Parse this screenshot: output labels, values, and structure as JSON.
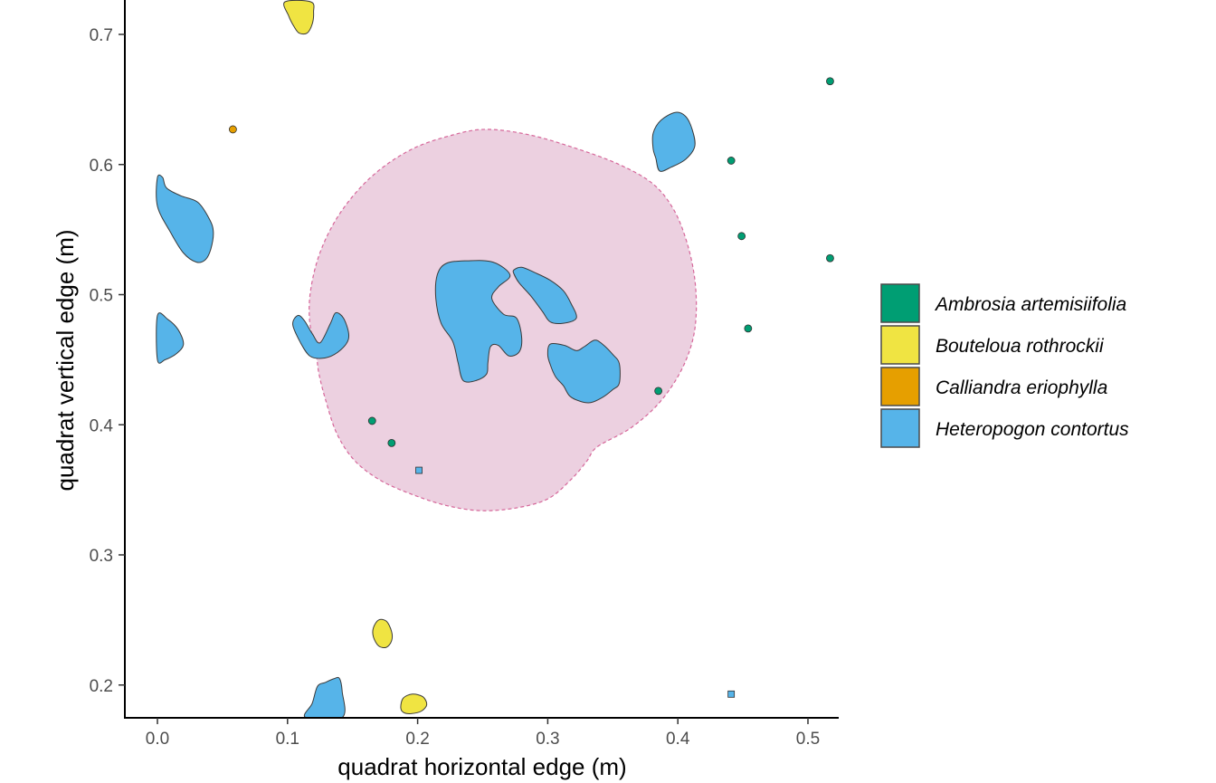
{
  "chart_data": {
    "type": "scatter",
    "title": "",
    "xlabel": "quadrat horizontal edge (m)",
    "ylabel": "quadrat vertical edge (m)",
    "xlim": [
      -0.025,
      0.525
    ],
    "ylim": [
      0.175,
      0.725
    ],
    "xticks": [
      "0.0",
      "0.1",
      "0.2",
      "0.3",
      "0.4",
      "0.5"
    ],
    "yticks": [
      "0.2",
      "0.3",
      "0.4",
      "0.5",
      "0.6",
      "0.7"
    ],
    "grid": false,
    "legend_position": "right",
    "species": [
      {
        "name": "Ambrosia artemisiifolia",
        "color": "#009E73"
      },
      {
        "name": "Bouteloua rothrockii",
        "color": "#F0E442"
      },
      {
        "name": "Calliandra eriophylla",
        "color": "#E69F00"
      },
      {
        "name": "Heteropogon contortus",
        "color": "#56B4E9"
      }
    ],
    "points": [
      {
        "species": "Ambrosia artemisiifolia",
        "x": 0.517,
        "y": 0.664
      },
      {
        "species": "Ambrosia artemisiifolia",
        "x": 0.441,
        "y": 0.603
      },
      {
        "species": "Ambrosia artemisiifolia",
        "x": 0.449,
        "y": 0.545
      },
      {
        "species": "Ambrosia artemisiifolia",
        "x": 0.517,
        "y": 0.528
      },
      {
        "species": "Ambrosia artemisiifolia",
        "x": 0.454,
        "y": 0.474
      },
      {
        "species": "Ambrosia artemisiifolia",
        "x": 0.385,
        "y": 0.426
      },
      {
        "species": "Ambrosia artemisiifolia",
        "x": 0.165,
        "y": 0.403
      },
      {
        "species": "Ambrosia artemisiifolia",
        "x": 0.18,
        "y": 0.386
      },
      {
        "species": "Calliandra eriophylla",
        "x": 0.058,
        "y": 0.627
      }
    ],
    "square_points": [
      {
        "species": "Heteropogon contortus",
        "x": 0.201,
        "y": 0.365
      },
      {
        "species": "Heteropogon contortus",
        "x": 0.441,
        "y": 0.193
      }
    ],
    "highlight_region": {
      "fill": "#ecd0e0",
      "stroke": "#d6679a",
      "style": "dashed",
      "outline": [
        [
          0.122,
          0.455
        ],
        [
          0.117,
          0.48
        ],
        [
          0.118,
          0.505
        ],
        [
          0.126,
          0.535
        ],
        [
          0.142,
          0.565
        ],
        [
          0.166,
          0.592
        ],
        [
          0.196,
          0.612
        ],
        [
          0.228,
          0.623
        ],
        [
          0.253,
          0.627
        ],
        [
          0.285,
          0.623
        ],
        [
          0.32,
          0.613
        ],
        [
          0.355,
          0.6
        ],
        [
          0.381,
          0.585
        ],
        [
          0.397,
          0.565
        ],
        [
          0.407,
          0.54
        ],
        [
          0.413,
          0.512
        ],
        [
          0.414,
          0.483
        ],
        [
          0.41,
          0.46
        ],
        [
          0.4,
          0.437
        ],
        [
          0.384,
          0.415
        ],
        [
          0.363,
          0.397
        ],
        [
          0.338,
          0.383
        ],
        [
          0.33,
          0.372
        ],
        [
          0.318,
          0.358
        ],
        [
          0.3,
          0.343
        ],
        [
          0.275,
          0.336
        ],
        [
          0.248,
          0.334
        ],
        [
          0.222,
          0.338
        ],
        [
          0.197,
          0.346
        ],
        [
          0.172,
          0.357
        ],
        [
          0.152,
          0.372
        ],
        [
          0.138,
          0.393
        ],
        [
          0.129,
          0.42
        ],
        [
          0.124,
          0.44
        ]
      ]
    },
    "patches": [
      {
        "species": "Bouteloua rothrockii",
        "outline": [
          [
            0.098,
            0.725
          ],
          [
            0.101,
            0.714
          ],
          [
            0.105,
            0.706
          ],
          [
            0.109,
            0.701
          ],
          [
            0.115,
            0.701
          ],
          [
            0.119,
            0.708
          ],
          [
            0.12,
            0.717
          ],
          [
            0.118,
            0.725
          ]
        ]
      },
      {
        "species": "Bouteloua rothrockii",
        "outline": [
          [
            0.166,
            0.244
          ],
          [
            0.17,
            0.25
          ],
          [
            0.176,
            0.249
          ],
          [
            0.18,
            0.241
          ],
          [
            0.18,
            0.234
          ],
          [
            0.176,
            0.229
          ],
          [
            0.17,
            0.23
          ],
          [
            0.166,
            0.237
          ]
        ]
      },
      {
        "species": "Bouteloua rothrockii",
        "outline": [
          [
            0.187,
            0.183
          ],
          [
            0.189,
            0.19
          ],
          [
            0.196,
            0.193
          ],
          [
            0.204,
            0.191
          ],
          [
            0.207,
            0.185
          ],
          [
            0.203,
            0.18
          ],
          [
            0.195,
            0.178
          ],
          [
            0.189,
            0.179
          ]
        ]
      },
      {
        "species": "Heteropogon contortus",
        "outline": [
          [
            0.0,
            0.59
          ],
          [
            0.004,
            0.59
          ],
          [
            0.007,
            0.582
          ],
          [
            0.018,
            0.576
          ],
          [
            0.031,
            0.571
          ],
          [
            0.04,
            0.558
          ],
          [
            0.043,
            0.548
          ],
          [
            0.041,
            0.535
          ],
          [
            0.037,
            0.527
          ],
          [
            0.03,
            0.525
          ],
          [
            0.02,
            0.532
          ],
          [
            0.01,
            0.548
          ],
          [
            0.0,
            0.568
          ]
        ]
      },
      {
        "species": "Heteropogon contortus",
        "outline": [
          [
            0.0,
            0.484
          ],
          [
            0.008,
            0.481
          ],
          [
            0.016,
            0.473
          ],
          [
            0.02,
            0.462
          ],
          [
            0.015,
            0.455
          ],
          [
            0.006,
            0.45
          ],
          [
            0.0,
            0.45
          ]
        ]
      },
      {
        "species": "Heteropogon contortus",
        "outline": [
          [
            0.104,
            0.477
          ],
          [
            0.108,
            0.484
          ],
          [
            0.113,
            0.48
          ],
          [
            0.119,
            0.47
          ],
          [
            0.125,
            0.463
          ],
          [
            0.133,
            0.478
          ],
          [
            0.137,
            0.486
          ],
          [
            0.143,
            0.482
          ],
          [
            0.147,
            0.47
          ],
          [
            0.145,
            0.462
          ],
          [
            0.136,
            0.454
          ],
          [
            0.126,
            0.451
          ],
          [
            0.117,
            0.453
          ],
          [
            0.11,
            0.463
          ]
        ]
      },
      {
        "species": "Heteropogon contortus",
        "outline": [
          [
            0.215,
            0.515
          ],
          [
            0.222,
            0.524
          ],
          [
            0.238,
            0.526
          ],
          [
            0.258,
            0.525
          ],
          [
            0.271,
            0.515
          ],
          [
            0.262,
            0.506
          ],
          [
            0.257,
            0.497
          ],
          [
            0.266,
            0.485
          ],
          [
            0.276,
            0.482
          ],
          [
            0.28,
            0.467
          ],
          [
            0.278,
            0.456
          ],
          [
            0.27,
            0.453
          ],
          [
            0.262,
            0.461
          ],
          [
            0.256,
            0.46
          ],
          [
            0.254,
            0.448
          ],
          [
            0.253,
            0.439
          ],
          [
            0.245,
            0.434
          ],
          [
            0.235,
            0.434
          ],
          [
            0.231,
            0.448
          ],
          [
            0.227,
            0.464
          ],
          [
            0.218,
            0.478
          ],
          [
            0.214,
            0.497
          ]
        ]
      },
      {
        "species": "Heteropogon contortus",
        "outline": [
          [
            0.274,
            0.519
          ],
          [
            0.28,
            0.521
          ],
          [
            0.29,
            0.517
          ],
          [
            0.302,
            0.511
          ],
          [
            0.312,
            0.503
          ],
          [
            0.318,
            0.493
          ],
          [
            0.322,
            0.482
          ],
          [
            0.312,
            0.478
          ],
          [
            0.302,
            0.479
          ],
          [
            0.296,
            0.487
          ],
          [
            0.287,
            0.499
          ],
          [
            0.278,
            0.509
          ],
          [
            0.274,
            0.516
          ]
        ]
      },
      {
        "species": "Heteropogon contortus",
        "outline": [
          [
            0.3,
            0.454
          ],
          [
            0.302,
            0.462
          ],
          [
            0.313,
            0.461
          ],
          [
            0.322,
            0.457
          ],
          [
            0.328,
            0.46
          ],
          [
            0.336,
            0.465
          ],
          [
            0.342,
            0.462
          ],
          [
            0.35,
            0.454
          ],
          [
            0.355,
            0.447
          ],
          [
            0.355,
            0.432
          ],
          [
            0.35,
            0.427
          ],
          [
            0.342,
            0.421
          ],
          [
            0.333,
            0.417
          ],
          [
            0.325,
            0.418
          ],
          [
            0.317,
            0.422
          ],
          [
            0.312,
            0.43
          ],
          [
            0.306,
            0.437
          ],
          [
            0.302,
            0.446
          ]
        ]
      },
      {
        "species": "Heteropogon contortus",
        "outline": [
          [
            0.381,
            0.624
          ],
          [
            0.387,
            0.634
          ],
          [
            0.398,
            0.64
          ],
          [
            0.406,
            0.637
          ],
          [
            0.411,
            0.627
          ],
          [
            0.413,
            0.614
          ],
          [
            0.406,
            0.604
          ],
          [
            0.395,
            0.598
          ],
          [
            0.386,
            0.595
          ],
          [
            0.383,
            0.605
          ],
          [
            0.381,
            0.612
          ]
        ]
      },
      {
        "species": "Heteropogon contortus",
        "outline": [
          [
            0.114,
            0.175
          ],
          [
            0.119,
            0.186
          ],
          [
            0.123,
            0.199
          ],
          [
            0.129,
            0.202
          ],
          [
            0.136,
            0.205
          ],
          [
            0.14,
            0.205
          ],
          [
            0.142,
            0.195
          ],
          [
            0.142,
            0.175
          ]
        ]
      }
    ]
  }
}
